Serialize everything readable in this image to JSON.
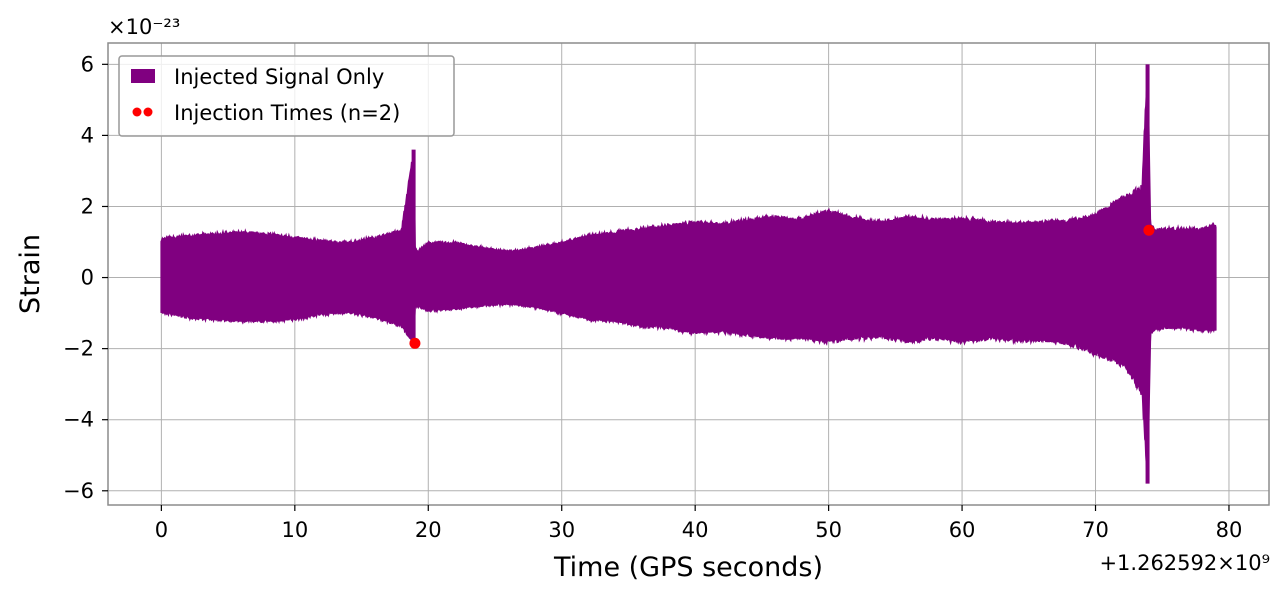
{
  "chart_data": {
    "type": "line",
    "xlabel": "Time (GPS seconds)",
    "ylabel": "Strain",
    "x_offset_label": "+1.262592×10⁹",
    "y_multiplier_label": "×10⁻²³",
    "xlim": [
      -4,
      83
    ],
    "ylim": [
      -6.4,
      6.6
    ],
    "y_scale_factor": 1e-23,
    "x_ticks": [
      0,
      10,
      20,
      30,
      40,
      50,
      60,
      70,
      80
    ],
    "y_ticks": [
      -6,
      -4,
      -2,
      0,
      2,
      4,
      6
    ],
    "y_tick_labels": [
      "−6",
      "−4",
      "−2",
      "0",
      "2",
      "4",
      "6"
    ],
    "grid": true,
    "legend_position": "top-left",
    "colors": {
      "signal": "#800080",
      "injection": "#ff0000",
      "grid": "#b0b0b0"
    },
    "series": [
      {
        "name": "Injected Signal Only",
        "kind": "envelope",
        "x": [
          0,
          2,
          4,
          6,
          8,
          10,
          12,
          14,
          16,
          18,
          18.9,
          19.0,
          19.2,
          20,
          22,
          24,
          26,
          28,
          30,
          32,
          34,
          36,
          38,
          40,
          42,
          44,
          46,
          48,
          50,
          52,
          54,
          56,
          58,
          60,
          62,
          64,
          66,
          68,
          70,
          72,
          73.5,
          73.9,
          74.1,
          74.5,
          76,
          78,
          79
        ],
        "upper": [
          1.1,
          1.2,
          1.25,
          1.3,
          1.25,
          1.15,
          1.05,
          1.0,
          1.15,
          1.35,
          3.6,
          0.9,
          0.75,
          1.0,
          1.0,
          0.85,
          0.75,
          0.85,
          1.0,
          1.2,
          1.3,
          1.4,
          1.5,
          1.6,
          1.55,
          1.65,
          1.75,
          1.7,
          1.9,
          1.7,
          1.6,
          1.75,
          1.65,
          1.7,
          1.6,
          1.55,
          1.6,
          1.65,
          1.8,
          2.3,
          2.6,
          6.0,
          1.5,
          1.4,
          1.4,
          1.4,
          1.5
        ],
        "lower": [
          -1.0,
          -1.15,
          -1.2,
          -1.25,
          -1.25,
          -1.2,
          -1.05,
          -1.0,
          -1.15,
          -1.4,
          -1.85,
          -0.85,
          -0.8,
          -0.95,
          -0.9,
          -0.8,
          -0.75,
          -0.85,
          -1.0,
          -1.2,
          -1.25,
          -1.4,
          -1.45,
          -1.6,
          -1.55,
          -1.65,
          -1.75,
          -1.75,
          -1.85,
          -1.75,
          -1.7,
          -1.85,
          -1.75,
          -1.85,
          -1.75,
          -1.8,
          -1.8,
          -1.9,
          -2.2,
          -2.5,
          -3.3,
          -5.8,
          -1.6,
          -1.45,
          -1.45,
          -1.5,
          -1.5
        ]
      },
      {
        "name": "Injection Times (n=2)",
        "kind": "scatter",
        "points": [
          {
            "x": 19.0,
            "y": -1.85
          },
          {
            "x": 74.0,
            "y": 1.33
          }
        ]
      }
    ]
  }
}
